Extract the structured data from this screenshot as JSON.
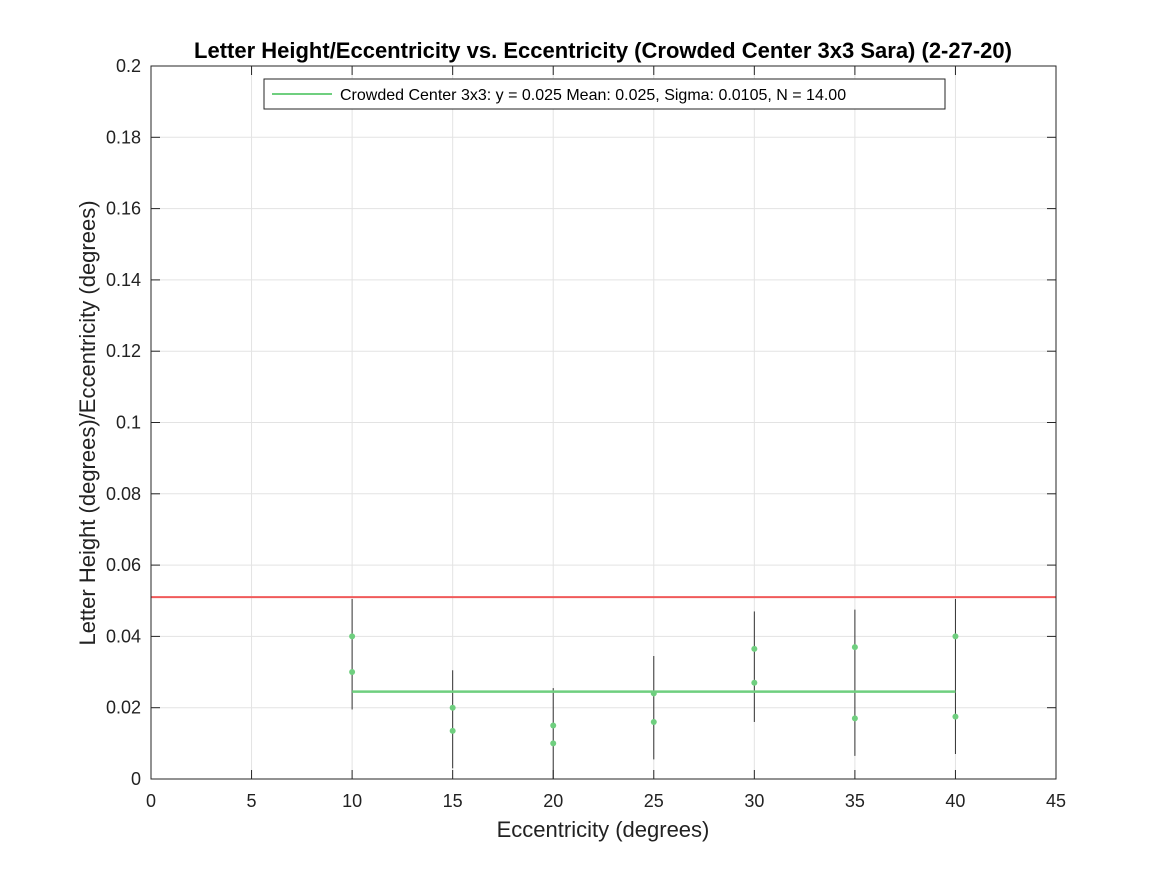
{
  "chart_data": {
    "type": "scatter",
    "title": "Letter Height/Eccentricity vs. Eccentricity (Crowded Center 3x3 Sara) (2-27-20)",
    "xlabel": "Eccentricity (degrees)",
    "ylabel": "Letter Height (degrees)/Eccentricity (degrees)",
    "xlim": [
      0,
      45
    ],
    "ylim": [
      0,
      0.2
    ],
    "xticks": [
      0,
      5,
      10,
      15,
      20,
      25,
      30,
      35,
      40,
      45
    ],
    "xtick_labels": [
      "0",
      "5",
      "10",
      "15",
      "20",
      "25",
      "30",
      "35",
      "40",
      "45"
    ],
    "yticks": [
      0,
      0.02,
      0.04,
      0.06,
      0.08,
      0.1,
      0.12,
      0.14,
      0.16,
      0.18,
      0.2
    ],
    "ytick_labels": [
      "0",
      "0.02",
      "0.04",
      "0.06",
      "0.08",
      "0.1",
      "0.12",
      "0.14",
      "0.16",
      "0.18",
      "0.2"
    ],
    "grid": true,
    "legend_position": "top",
    "series": [
      {
        "name": "Crowded Center 3x3: y = 0.025 Mean: 0.025, Sigma: 0.0105, N = 14.00",
        "color": "#6fcf7f",
        "points": [
          {
            "x": 10,
            "y": 0.04
          },
          {
            "x": 10,
            "y": 0.03
          },
          {
            "x": 15,
            "y": 0.02
          },
          {
            "x": 15,
            "y": 0.0135
          },
          {
            "x": 20,
            "y": 0.015
          },
          {
            "x": 20,
            "y": 0.01
          },
          {
            "x": 25,
            "y": 0.024
          },
          {
            "x": 25,
            "y": 0.016
          },
          {
            "x": 30,
            "y": 0.0365
          },
          {
            "x": 30,
            "y": 0.027
          },
          {
            "x": 35,
            "y": 0.037
          },
          {
            "x": 35,
            "y": 0.017
          },
          {
            "x": 40,
            "y": 0.04
          },
          {
            "x": 40,
            "y": 0.0175
          }
        ],
        "fit_line": {
          "x": [
            10,
            40
          ],
          "y": 0.0245
        }
      }
    ],
    "error_bars": [
      {
        "x": 10,
        "low": 0.0195,
        "high": 0.0505
      },
      {
        "x": 15,
        "low": 0.003,
        "high": 0.0305
      },
      {
        "x": 20,
        "low": 0.0,
        "high": 0.0255
      },
      {
        "x": 25,
        "low": 0.0055,
        "high": 0.0345
      },
      {
        "x": 30,
        "low": 0.016,
        "high": 0.047
      },
      {
        "x": 35,
        "low": 0.0065,
        "high": 0.0475
      },
      {
        "x": 40,
        "low": 0.007,
        "high": 0.0505
      }
    ],
    "reference_line": {
      "y": 0.051,
      "color": "#f05a5a"
    }
  }
}
